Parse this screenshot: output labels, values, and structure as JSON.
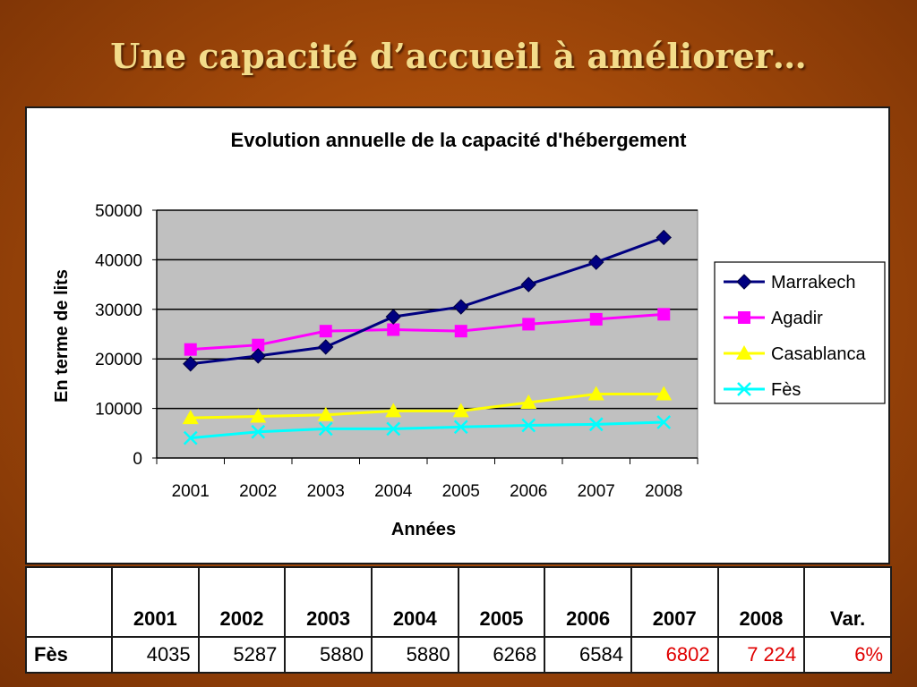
{
  "slide": {
    "title": "Une capacité d’accueil à améliorer…"
  },
  "chart_data": {
    "type": "line",
    "title": "Evolution annuelle de la capacité d'hébergement",
    "xlabel": "Années",
    "ylabel": "En terme de lits",
    "categories": [
      "2001",
      "2002",
      "2003",
      "2004",
      "2005",
      "2006",
      "2007",
      "2008"
    ],
    "ylim": [
      0,
      50000
    ],
    "yticks": [
      0,
      10000,
      20000,
      30000,
      40000,
      50000
    ],
    "grid": true,
    "legend_position": "right",
    "series": [
      {
        "name": "Marrakech",
        "color": "#000080",
        "marker": "diamond",
        "values": [
          19000,
          20600,
          22400,
          28500,
          30500,
          35000,
          39500,
          44500
        ]
      },
      {
        "name": "Agadir",
        "color": "#ff00ff",
        "marker": "square",
        "values": [
          21900,
          22800,
          25600,
          25900,
          25600,
          27000,
          28000,
          29000
        ]
      },
      {
        "name": "Casablanca",
        "color": "#ffff00",
        "marker": "triangle",
        "values": [
          8100,
          8400,
          8700,
          9500,
          9500,
          11200,
          12900,
          12900
        ]
      },
      {
        "name": "Fès",
        "color": "#00ffff",
        "marker": "x",
        "values": [
          4035,
          5287,
          5880,
          5880,
          6268,
          6584,
          6802,
          7224
        ]
      }
    ]
  },
  "table": {
    "headers": [
      "",
      "2001",
      "2002",
      "2003",
      "2004",
      "2005",
      "2006",
      "2007",
      "2008",
      "Var."
    ],
    "row": {
      "label": "Fès",
      "cells": [
        "4035",
        "5287",
        "5880",
        "5880",
        "6268",
        "6584",
        "6802",
        "7 224",
        "6%"
      ]
    }
  }
}
